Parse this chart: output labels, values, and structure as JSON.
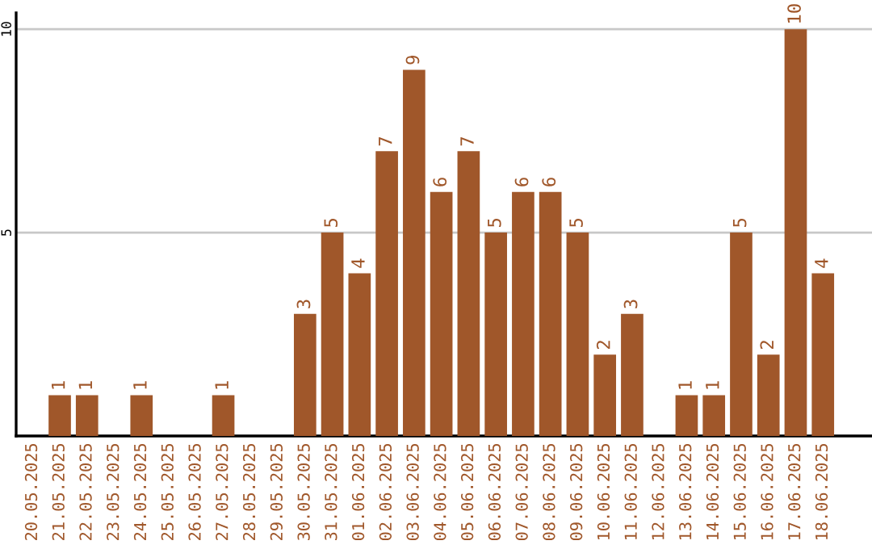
{
  "chart_data": {
    "type": "bar",
    "categories": [
      "20.05.2025",
      "21.05.2025",
      "22.05.2025",
      "23.05.2025",
      "24.05.2025",
      "25.05.2025",
      "26.05.2025",
      "27.05.2025",
      "28.05.2025",
      "29.05.2025",
      "30.05.2025",
      "31.05.2025",
      "01.06.2025",
      "02.06.2025",
      "03.06.2025",
      "04.06.2025",
      "05.06.2025",
      "06.06.2025",
      "07.06.2025",
      "08.06.2025",
      "09.06.2025",
      "10.06.2025",
      "11.06.2025",
      "12.06.2025",
      "13.06.2025",
      "14.06.2025",
      "15.06.2025",
      "16.06.2025",
      "17.06.2025",
      "18.06.2025"
    ],
    "values": [
      0,
      1,
      1,
      0,
      1,
      0,
      0,
      1,
      0,
      0,
      3,
      5,
      4,
      7,
      9,
      6,
      7,
      5,
      6,
      6,
      5,
      2,
      3,
      0,
      1,
      1,
      5,
      2,
      10,
      4
    ],
    "value_labels": [
      null,
      "1",
      "1",
      null,
      "1",
      null,
      null,
      "1",
      null,
      null,
      "3",
      "5",
      "4",
      "7",
      "9",
      "6",
      "7",
      "5",
      "6",
      "6",
      "5",
      "2",
      "3",
      null,
      "1",
      "1",
      "5",
      "2",
      "10",
      "4"
    ],
    "color": "#a0572a",
    "ylim": [
      0,
      10.4
    ],
    "yticks": [
      5,
      10
    ],
    "grid": "y"
  }
}
